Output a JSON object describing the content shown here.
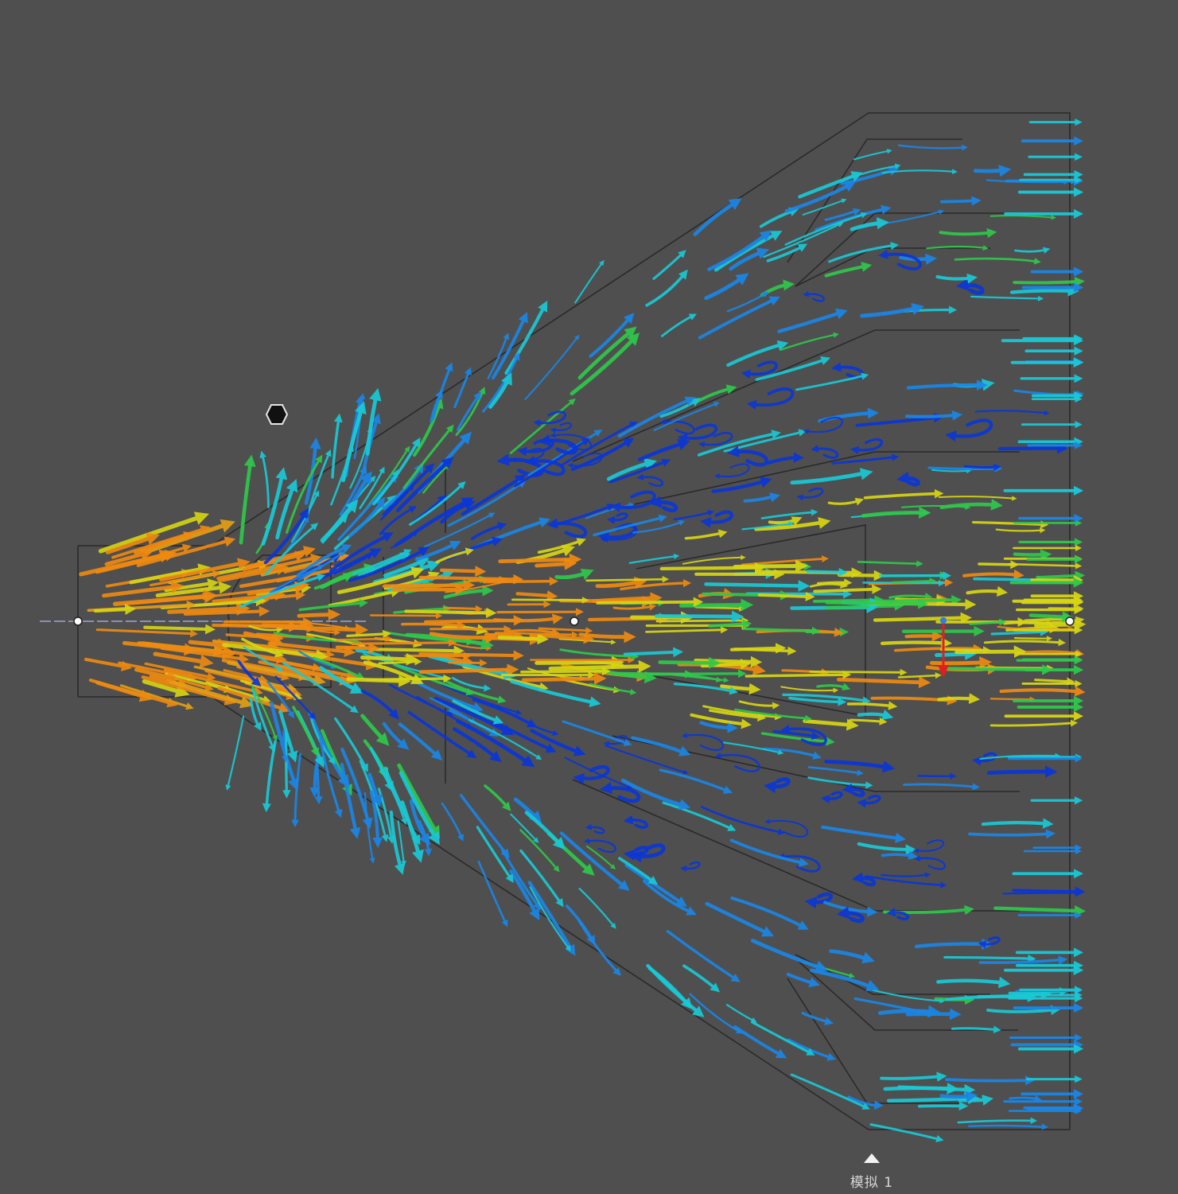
{
  "window": {
    "background": "#4f4f4f"
  },
  "simulation": {
    "label": "模拟 1"
  },
  "legend_colors": {
    "slow": "#0a36d8",
    "low": "#1a86e6",
    "mid_low": "#19c9d6",
    "mid": "#2ec94a",
    "mid_high": "#d8d612",
    "high": "#f08a10"
  },
  "icons": {
    "navigation": "hexagon-icon",
    "marker": "triangle-up-icon",
    "gizmo": "axis-gizmo-icon"
  }
}
